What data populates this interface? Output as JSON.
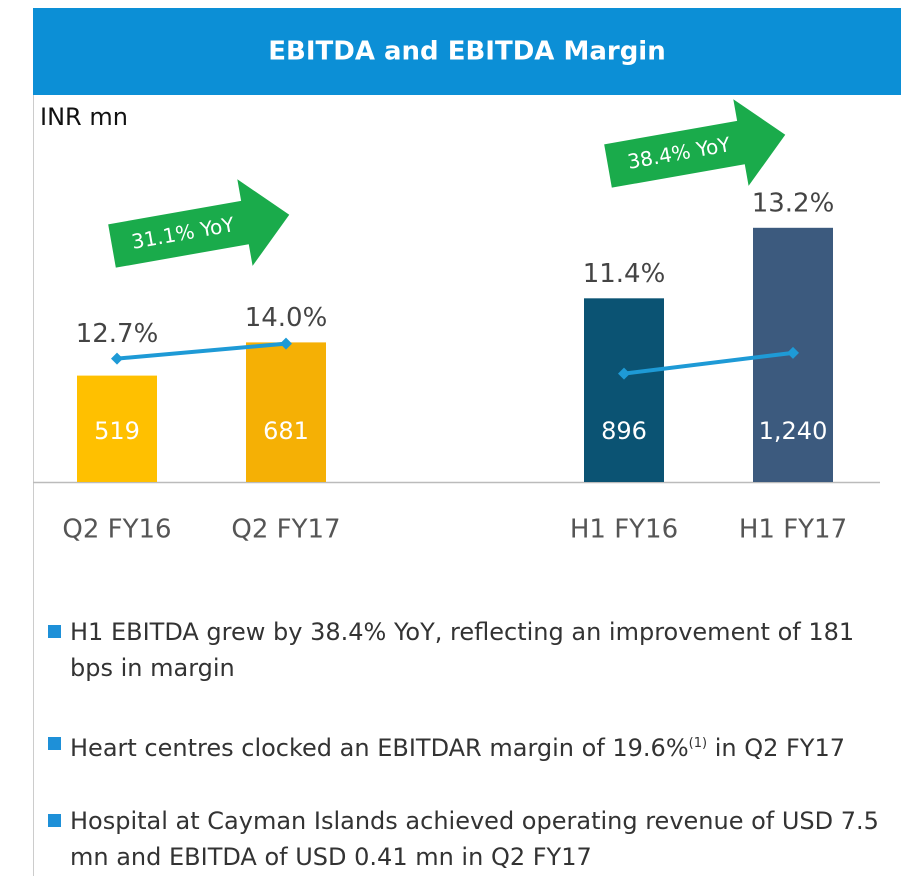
{
  "header": {
    "title": "EBITDA and EBITDA Margin"
  },
  "unit": "INR mn",
  "chart_data": [
    {
      "type": "bar-line",
      "categories": [
        "Q2 FY16",
        "Q2 FY17"
      ],
      "series": [
        {
          "type": "bar",
          "colors": [
            "#ffc000",
            "#f5b005"
          ],
          "values": [
            519,
            681
          ],
          "value_labels": [
            "519",
            "681"
          ]
        },
        {
          "type": "line",
          "axis": "y2",
          "color": "#1e9ad6",
          "values": [
            12.7,
            14.0
          ],
          "value_labels": [
            "12.7%",
            "14.0%"
          ]
        }
      ],
      "ylim": [
        0,
        1800
      ],
      "y2lim": [
        2,
        34
      ],
      "annotation": "31.1% YoY"
    },
    {
      "type": "bar-line",
      "categories": [
        "H1 FY16",
        "H1 FY17"
      ],
      "series": [
        {
          "type": "bar",
          "colors": [
            "#0b5373",
            "#3c5a7e"
          ],
          "values": [
            896,
            1240
          ],
          "value_labels": [
            "896",
            "1,240"
          ]
        },
        {
          "type": "line",
          "axis": "y2",
          "color": "#1e9ad6",
          "values": [
            11.4,
            13.2
          ],
          "value_labels": [
            "11.4%",
            "13.2%"
          ]
        }
      ],
      "ylim": [
        0,
        1800
      ],
      "y2lim": [
        2,
        34
      ],
      "annotation": "38.4% YoY"
    }
  ],
  "bullets": [
    [
      "H1 EBITDA grew by 38.4% YoY, reflecting an improvement of 181 bps in margin"
    ],
    [
      "Heart centres clocked an EBITDAR margin of 19.6%",
      "(1)",
      " in Q2 FY17"
    ],
    [
      "Hospital at Cayman Islands achieved operating revenue of USD 7.5 mn and EBITDA of USD 0.41 mn in Q2 FY17"
    ]
  ]
}
